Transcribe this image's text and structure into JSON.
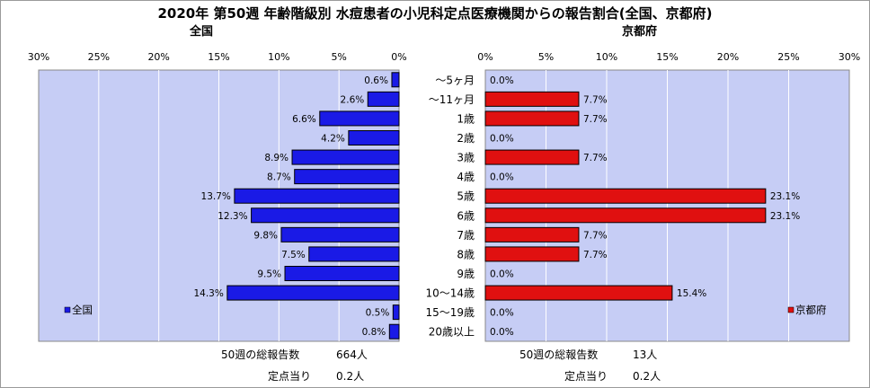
{
  "title": "2020年 第50週 年齢階級別 水痘患者の小児科定点医療機関からの報告割合(全国、京都府)",
  "colors": {
    "national_bar": "#1a1ae6",
    "kyoto_bar": "#e01010",
    "plot_background": "#c6cdf5",
    "bar_outline": "#000000"
  },
  "chart_data": [
    {
      "type": "bar",
      "orientation": "horizontal",
      "direction": "right-to-left",
      "title": "全国",
      "categories": [
        "〜5ヶ月",
        "〜11ヶ月",
        "1歳",
        "2歳",
        "3歳",
        "4歳",
        "5歳",
        "6歳",
        "7歳",
        "8歳",
        "9歳",
        "10〜14歳",
        "15〜19歳",
        "20歳以上"
      ],
      "series": [
        {
          "name": "全国",
          "values": [
            0.6,
            2.6,
            6.6,
            4.2,
            8.9,
            8.7,
            13.7,
            12.3,
            9.8,
            7.5,
            9.5,
            14.3,
            0.5,
            0.8
          ]
        }
      ],
      "value_labels": [
        "0.6%",
        "2.6%",
        "6.6%",
        "4.2%",
        "8.9%",
        "8.7%",
        "13.7%",
        "12.3%",
        "9.8%",
        "7.5%",
        "9.5%",
        "14.3%",
        "0.5%",
        "0.8%"
      ],
      "xlim": [
        0,
        30
      ],
      "xticks": [
        "0%",
        "5%",
        "10%",
        "15%",
        "20%",
        "25%",
        "30%"
      ],
      "grid": true,
      "legend": {
        "label": "全国",
        "position": "bottom-left"
      }
    },
    {
      "type": "bar",
      "orientation": "horizontal",
      "direction": "left-to-right",
      "title": "京都府",
      "categories": [
        "〜5ヶ月",
        "〜11ヶ月",
        "1歳",
        "2歳",
        "3歳",
        "4歳",
        "5歳",
        "6歳",
        "7歳",
        "8歳",
        "9歳",
        "10〜14歳",
        "15〜19歳",
        "20歳以上"
      ],
      "series": [
        {
          "name": "京都府",
          "values": [
            0.0,
            7.7,
            7.7,
            0.0,
            7.7,
            0.0,
            23.1,
            23.1,
            7.7,
            7.7,
            0.0,
            15.4,
            0.0,
            0.0
          ]
        }
      ],
      "value_labels": [
        "0.0%",
        "7.7%",
        "7.7%",
        "0.0%",
        "7.7%",
        "0.0%",
        "23.1%",
        "23.1%",
        "7.7%",
        "7.7%",
        "0.0%",
        "15.4%",
        "0.0%",
        "0.0%"
      ],
      "xlim": [
        0,
        30
      ],
      "xticks": [
        "0%",
        "5%",
        "10%",
        "15%",
        "20%",
        "25%",
        "30%"
      ],
      "grid": true,
      "legend": {
        "label": "京都府",
        "position": "bottom-right"
      }
    }
  ],
  "footer": {
    "national": {
      "total_label": "50週の総報告数",
      "total_value": "664人",
      "per_site_label": "定点当り",
      "per_site_value": "0.2人"
    },
    "kyoto": {
      "total_label": "50週の総報告数",
      "total_value": "13人",
      "per_site_label": "定点当り",
      "per_site_value": "0.2人"
    }
  }
}
